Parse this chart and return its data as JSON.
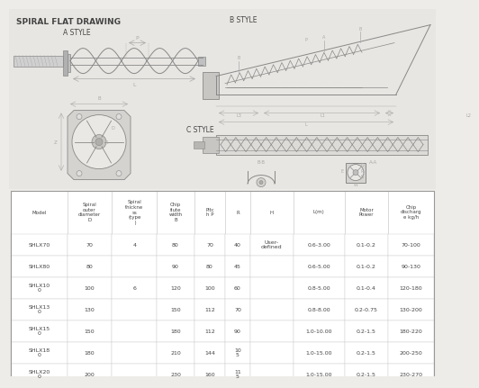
{
  "title": "SPIRAL FLAT DRAWING",
  "bg_color": "#eeece8",
  "a_style_label": "A STYLE",
  "b_style_label": "B STYLE",
  "c_style_label": "C STYLE",
  "table_headers": [
    "Model",
    "Spiral\nouter\ndiameter\nD",
    "Spiral\nthickne\nss\n(type\n  )",
    "Chip\nflute\nwidth\nB",
    "Pitc\nh P",
    "R",
    "H",
    "L(m)",
    "Motor\nPower",
    "Chip\ndischarg\ne kg/h"
  ],
  "table_data": [
    [
      "SHLX70",
      "70",
      "4",
      "80",
      "70",
      "40",
      "User-\ndefined",
      "0.6-3.00",
      "0.1-0.2",
      "70-100"
    ],
    [
      "SHLX80",
      "80",
      "",
      "90",
      "80",
      "45",
      "",
      "0.6-5.00",
      "0.1-0.2",
      "90-130"
    ],
    [
      "SHLX10\n0",
      "100",
      "6",
      "120",
      "100",
      "60",
      "",
      "0.8-5.00",
      "0.1-0.4",
      "120-180"
    ],
    [
      "SHLX13\n0",
      "130",
      "",
      "150",
      "112",
      "70",
      "",
      "0.8-8.00",
      "0.2-0.75",
      "130-200"
    ],
    [
      "SHLX15\n0",
      "150",
      "",
      "180",
      "112",
      "90",
      "",
      "1.0-10.00",
      "0.2-1.5",
      "180-220"
    ],
    [
      "SHLX18\n0",
      "180",
      "",
      "210",
      "144",
      "10\n5",
      "",
      "1.0-15.00",
      "0.2-1.5",
      "200-250"
    ],
    [
      "SHLX20\n0",
      "200",
      "",
      "230",
      "160",
      "11\n5",
      "",
      "1.0-15.00",
      "0.2-1.5",
      "230-270"
    ]
  ],
  "lc": "#888888",
  "lc_dim": "#aaaaaa",
  "text_color": "#444444",
  "table_line_color": "#cccccc",
  "table_bg": "#ffffff",
  "drawing_bg": "#e8e6e2"
}
